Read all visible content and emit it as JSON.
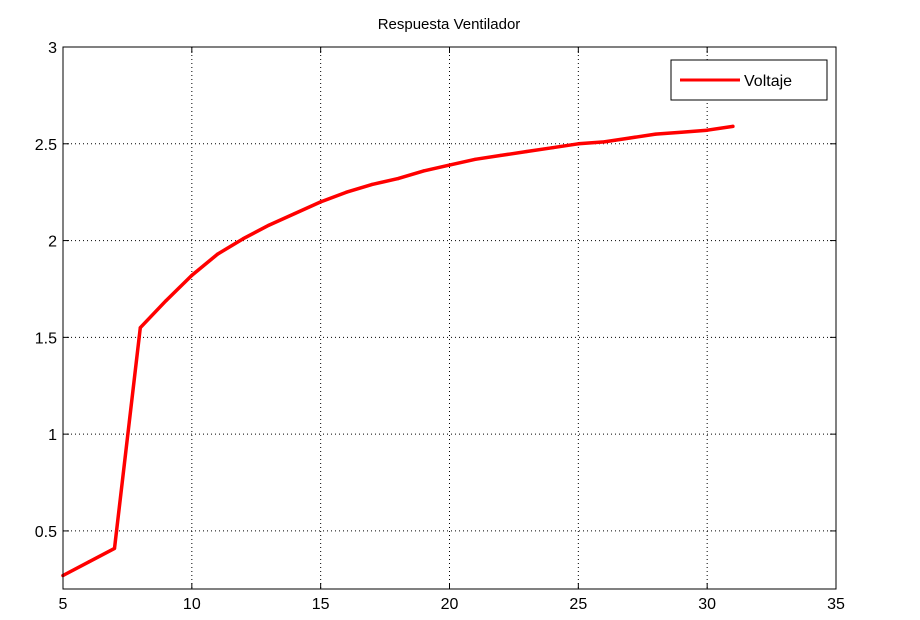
{
  "chart_data": {
    "type": "line",
    "title": "Respuesta Ventilador",
    "xlabel": "",
    "ylabel": "",
    "xlim": [
      5,
      35
    ],
    "ylim": [
      0.2,
      3
    ],
    "xticks": [
      5,
      10,
      15,
      20,
      25,
      30,
      35
    ],
    "yticks": [
      0.5,
      1,
      1.5,
      2,
      2.5,
      3
    ],
    "xtick_labels": [
      "5",
      "10",
      "15",
      "20",
      "25",
      "30",
      "35"
    ],
    "ytick_labels": [
      "0.5",
      "1",
      "1.5",
      "2",
      "2.5",
      "3"
    ],
    "grid": true,
    "legend_position": "top-right",
    "series": [
      {
        "name": "Voltaje",
        "color": "#ff0000",
        "x": [
          5,
          6,
          7,
          8,
          9,
          10,
          11,
          12,
          13,
          14,
          15,
          16,
          17,
          18,
          19,
          20,
          21,
          22,
          23,
          24,
          25,
          26,
          27,
          28,
          29,
          30,
          31
        ],
        "y": [
          0.27,
          0.34,
          0.41,
          1.55,
          1.69,
          1.82,
          1.93,
          2.01,
          2.08,
          2.14,
          2.2,
          2.25,
          2.29,
          2.32,
          2.36,
          2.39,
          2.42,
          2.44,
          2.46,
          2.48,
          2.5,
          2.51,
          2.53,
          2.55,
          2.56,
          2.57,
          2.59
        ]
      }
    ]
  }
}
